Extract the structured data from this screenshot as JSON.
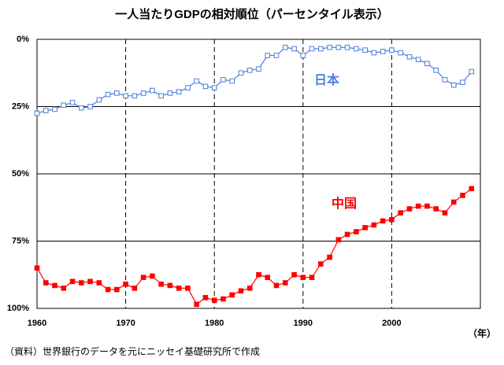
{
  "chart_data": {
    "type": "line",
    "title": "一人当たりGDPの相対順位（パーセンタイル表示）",
    "x_label": "（年）",
    "note": "（資料）世界銀行のデータを元にニッセイ基礎研究所で作成",
    "x": [
      1960,
      1961,
      1962,
      1963,
      1964,
      1965,
      1966,
      1967,
      1968,
      1969,
      1970,
      1971,
      1972,
      1973,
      1974,
      1975,
      1976,
      1977,
      1978,
      1979,
      1980,
      1981,
      1982,
      1983,
      1984,
      1985,
      1986,
      1987,
      1988,
      1989,
      1990,
      1991,
      1992,
      1993,
      1994,
      1995,
      1996,
      1997,
      1998,
      1999,
      2000,
      2001,
      2002,
      2003,
      2004,
      2005,
      2006,
      2007,
      2008,
      2009
    ],
    "series": [
      {
        "name": "日本",
        "color": "#4a7ede",
        "marker": "hollow-square",
        "values": [
          27.5,
          26.5,
          26,
          24.5,
          23.5,
          25.5,
          25,
          22.5,
          20.5,
          20,
          21,
          21,
          20,
          19,
          21,
          20,
          19.5,
          18,
          15.5,
          17.5,
          18,
          15,
          15.5,
          12.5,
          11.5,
          11,
          6,
          6,
          3,
          3.5,
          6,
          3.5,
          3.5,
          3,
          3,
          3,
          3.5,
          4,
          5,
          4.5,
          4,
          5,
          6.5,
          7.5,
          9,
          11.5,
          15,
          17,
          16,
          12
        ]
      },
      {
        "name": "中国",
        "color": "#ff0000",
        "marker": "filled-square",
        "values": [
          85,
          90.5,
          91.5,
          92.5,
          90,
          90.5,
          90,
          90.5,
          93,
          93,
          91,
          92.5,
          88.5,
          88,
          91,
          91.5,
          92.5,
          92.5,
          98.5,
          96,
          97,
          96.5,
          95,
          93.5,
          92.5,
          87.5,
          88.5,
          91.5,
          90.5,
          87.5,
          88.5,
          88.5,
          83.5,
          81,
          74.5,
          72.5,
          71.5,
          70,
          69,
          67.5,
          67,
          64.5,
          63,
          62,
          62,
          63,
          64.5,
          60.5,
          58,
          55.5
        ]
      }
    ],
    "xlim": [
      1960,
      2010
    ],
    "xticks": [
      1960,
      1970,
      1980,
      1990,
      2000
    ],
    "ylim": [
      100,
      0
    ],
    "yticks": [
      {
        "value": 0,
        "label": "0%"
      },
      {
        "value": 25,
        "label": "25%"
      },
      {
        "value": 50,
        "label": "50%"
      },
      {
        "value": 75,
        "label": "75%"
      },
      {
        "value": 100,
        "label": "100%"
      }
    ],
    "grid": true
  }
}
